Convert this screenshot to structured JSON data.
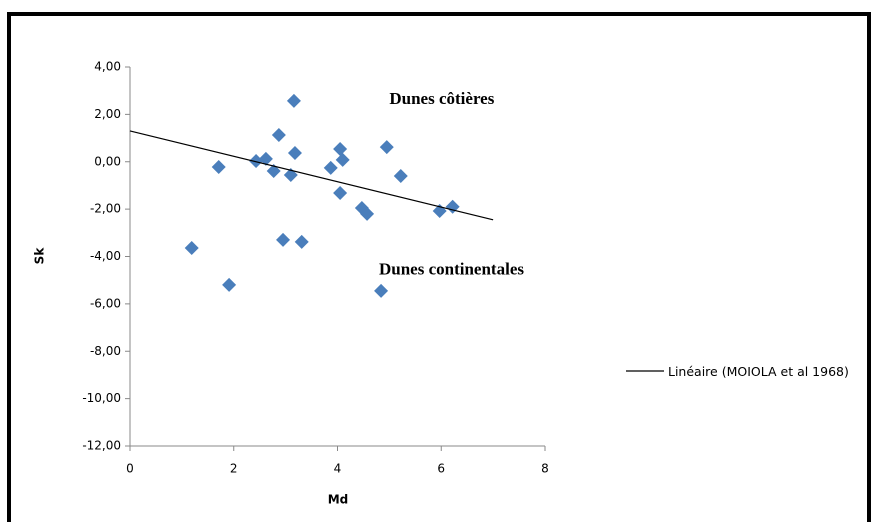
{
  "chart_data": {
    "type": "scatter",
    "x_label": "Md",
    "y_label": "Sk",
    "xlim": [
      0,
      8
    ],
    "xticks": [
      0,
      2,
      4,
      6,
      8
    ],
    "ylim": [
      -12,
      4
    ],
    "yticks": [
      {
        "value": -12,
        "label": "-12,00"
      },
      {
        "value": -10,
        "label": "-10,00"
      },
      {
        "value": -8,
        "label": "-8,00"
      },
      {
        "value": -6,
        "label": "-6,00"
      },
      {
        "value": -4,
        "label": "-4,00"
      },
      {
        "value": -2,
        "label": "-2,00"
      },
      {
        "value": 0,
        "label": "0,00"
      },
      {
        "value": 2,
        "label": "2,00"
      },
      {
        "value": 4,
        "label": "4,00"
      }
    ],
    "grid": false,
    "series": [
      {
        "color": "#4a7ebb",
        "x": [
          1.19,
          1.71,
          1.91,
          2.43,
          2.62,
          2.77,
          2.87,
          2.95,
          3.1,
          3.16,
          3.18,
          3.31,
          3.87,
          4.05,
          4.05,
          4.1,
          4.47,
          4.57,
          4.84,
          4.95,
          5.22,
          5.97,
          6.22
        ],
        "values": [
          -3.64,
          -0.22,
          -5.2,
          0.03,
          0.12,
          -0.39,
          1.13,
          -3.3,
          -0.56,
          2.57,
          0.37,
          -3.38,
          -0.26,
          0.54,
          -1.32,
          0.08,
          -1.95,
          -2.2,
          -5.45,
          0.62,
          -0.6,
          -2.08,
          -1.9
        ]
      }
    ],
    "trendline": {
      "name": "Linéaire (MOIOLA et al 1968)",
      "color": "#000000",
      "x": [
        0,
        7
      ],
      "values": [
        1.3,
        -2.45
      ]
    },
    "annotations": [
      {
        "text": "Dunes côtières",
        "x": 5.0,
        "y": 2.6
      },
      {
        "text": "Dunes continentales",
        "x": 4.8,
        "y": -4.6
      }
    ]
  }
}
